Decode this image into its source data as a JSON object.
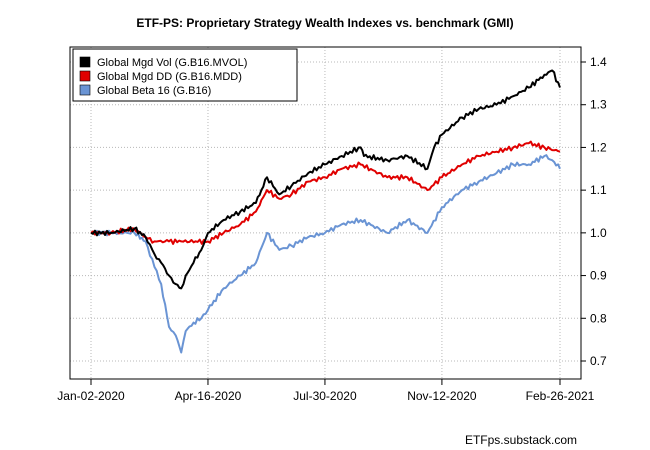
{
  "chart_data": {
    "type": "line",
    "title": "ETF-PS: Proprietary Strategy Wealth Indexes vs. benchmark (GMI)",
    "x_ticks": [
      "Jan-02-2020",
      "Apr-16-2020",
      "Jul-30-2020",
      "Nov-12-2020",
      "Feb-26-2021"
    ],
    "x_range": [
      "2020-01-02",
      "2021-02-26"
    ],
    "y_ticks": [
      "1.4",
      "1.3",
      "1.2",
      "1.1",
      "1.0",
      "0.9",
      "0.8",
      "0.7"
    ],
    "ylim": [
      0.67,
      1.43
    ],
    "y_axis_side": "right",
    "grid": true,
    "legend_position": "top-left",
    "credit": "ETFps.substack.com",
    "series": [
      {
        "name": "Global Mgd Vol (G.B16.MVOL)",
        "color": "#000000",
        "x": [
          "2020-01-02",
          "2020-01-20",
          "2020-02-10",
          "2020-02-20",
          "2020-02-28",
          "2020-03-05",
          "2020-03-12",
          "2020-03-18",
          "2020-03-23",
          "2020-03-27",
          "2020-04-03",
          "2020-04-10",
          "2020-04-16",
          "2020-04-30",
          "2020-05-15",
          "2020-05-29",
          "2020-06-08",
          "2020-06-19",
          "2020-06-30",
          "2020-07-15",
          "2020-07-30",
          "2020-08-14",
          "2020-08-31",
          "2020-09-03",
          "2020-09-24",
          "2020-10-12",
          "2020-10-30",
          "2020-11-05",
          "2020-11-12",
          "2020-11-30",
          "2020-12-15",
          "2020-12-31",
          "2021-01-15",
          "2021-01-29",
          "2021-02-12",
          "2021-02-19",
          "2021-02-26"
        ],
        "values": [
          1.0,
          1.0,
          1.01,
          0.99,
          0.95,
          0.93,
          0.9,
          0.88,
          0.87,
          0.9,
          0.93,
          0.96,
          1.0,
          1.03,
          1.05,
          1.07,
          1.13,
          1.09,
          1.11,
          1.14,
          1.16,
          1.18,
          1.2,
          1.18,
          1.17,
          1.18,
          1.15,
          1.2,
          1.23,
          1.27,
          1.29,
          1.3,
          1.32,
          1.34,
          1.37,
          1.38,
          1.34
        ]
      },
      {
        "name": "Global Mgd DD (G.B16.MDD)",
        "color": "#e00000",
        "x": [
          "2020-01-02",
          "2020-01-20",
          "2020-02-10",
          "2020-02-20",
          "2020-02-28",
          "2020-03-12",
          "2020-03-23",
          "2020-04-16",
          "2020-04-30",
          "2020-05-15",
          "2020-05-29",
          "2020-06-08",
          "2020-06-19",
          "2020-06-30",
          "2020-07-15",
          "2020-07-30",
          "2020-08-14",
          "2020-08-31",
          "2020-09-24",
          "2020-10-12",
          "2020-10-30",
          "2020-11-12",
          "2020-11-30",
          "2020-12-15",
          "2020-12-31",
          "2021-01-15",
          "2021-01-29",
          "2021-02-12",
          "2021-02-26"
        ],
        "values": [
          1.0,
          1.0,
          1.01,
          0.99,
          0.98,
          0.98,
          0.98,
          0.98,
          1.0,
          1.02,
          1.05,
          1.1,
          1.08,
          1.09,
          1.12,
          1.13,
          1.15,
          1.16,
          1.13,
          1.13,
          1.1,
          1.13,
          1.16,
          1.18,
          1.19,
          1.2,
          1.21,
          1.2,
          1.19
        ]
      },
      {
        "name": "Global Beta 16 (G.B16)",
        "color": "#6a94d4",
        "x": [
          "2020-01-02",
          "2020-01-20",
          "2020-02-10",
          "2020-02-20",
          "2020-02-28",
          "2020-03-05",
          "2020-03-12",
          "2020-03-18",
          "2020-03-23",
          "2020-03-27",
          "2020-04-03",
          "2020-04-10",
          "2020-04-16",
          "2020-04-30",
          "2020-05-15",
          "2020-05-29",
          "2020-06-08",
          "2020-06-19",
          "2020-06-30",
          "2020-07-15",
          "2020-07-30",
          "2020-08-14",
          "2020-08-31",
          "2020-09-24",
          "2020-10-12",
          "2020-10-30",
          "2020-11-12",
          "2020-11-30",
          "2020-12-15",
          "2020-12-31",
          "2021-01-15",
          "2021-01-29",
          "2021-02-12",
          "2021-02-19",
          "2021-02-26"
        ],
        "values": [
          1.0,
          1.0,
          1.0,
          0.98,
          0.92,
          0.88,
          0.78,
          0.76,
          0.72,
          0.77,
          0.79,
          0.8,
          0.82,
          0.87,
          0.9,
          0.93,
          1.0,
          0.96,
          0.97,
          0.99,
          1.0,
          1.02,
          1.03,
          1.0,
          1.03,
          1.0,
          1.06,
          1.1,
          1.12,
          1.14,
          1.16,
          1.16,
          1.18,
          1.17,
          1.15
        ]
      }
    ]
  }
}
